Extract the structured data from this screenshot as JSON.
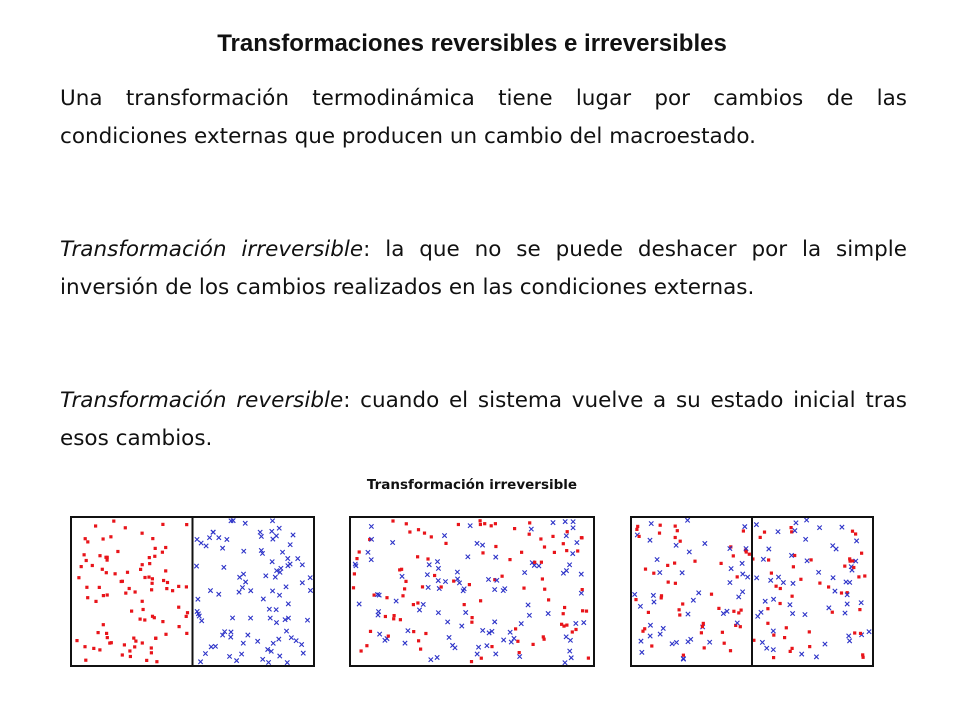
{
  "slide": {
    "title": "Transformaciones reversibles e irreversibles",
    "paragraphs": [
      {
        "text": "Una transformación termodinámica tiene lugar por cambios de las condiciones externas que producen un cambio del macroestado."
      },
      {
        "term": "Transformación irreversible",
        "rest": ": la que no se puede deshacer por la simple inversión de los cambios realizados en las condiciones externas."
      },
      {
        "term": "Transformación reversible",
        "rest": ": cuando el sistema vuelve a su estado inicial tras esos cambios."
      }
    ],
    "figure_caption": "Transformación irreversible"
  },
  "figure": {
    "colors": {
      "red_particles": "#e8141a",
      "blue_particles": "#2d33c8",
      "frame": "#111111"
    },
    "panels": [
      {
        "name": "initial-state-separated",
        "partition": true,
        "red_distribution": "left half",
        "blue_distribution": "right half"
      },
      {
        "name": "mixed-state-no-partition",
        "partition": false,
        "red_distribution": "whole box",
        "blue_distribution": "whole box"
      },
      {
        "name": "mixed-state-partition-restored",
        "partition": true,
        "red_distribution": "whole box",
        "blue_distribution": "whole box"
      }
    ]
  }
}
